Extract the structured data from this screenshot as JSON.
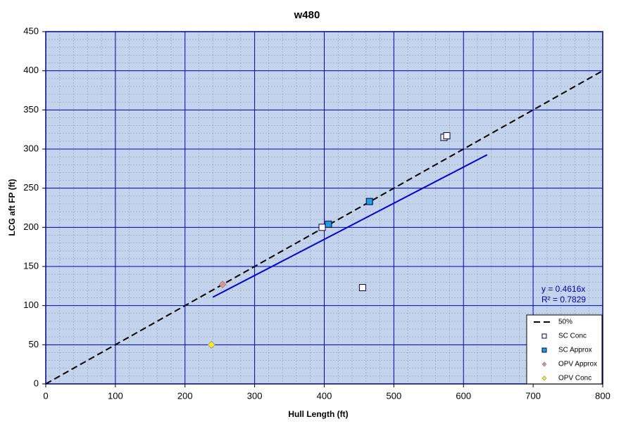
{
  "chart_data": {
    "type": "scatter",
    "title": "w480",
    "x_label": "Hull Length (ft)",
    "y_label": "LCG aft FP (ft)",
    "xlim": [
      0,
      800
    ],
    "xticks": [
      0,
      100,
      200,
      300,
      400,
      500,
      600,
      700,
      800
    ],
    "ylim": [
      0,
      450
    ],
    "yticks": [
      0,
      50,
      100,
      150,
      200,
      250,
      300,
      350,
      400,
      450
    ],
    "grid": true,
    "minor_grid": {
      "xstep": 20,
      "ystep": 10
    },
    "legend": "bottom-right",
    "series": [
      {
        "name": "50%",
        "kind": "line",
        "dash": true,
        "color": "#000000",
        "x": [
          0,
          800
        ],
        "values": [
          0,
          400
        ]
      },
      {
        "name": "SC Conc",
        "kind": "square",
        "color": "#ffffff",
        "x": [
          397,
          572,
          576,
          455
        ],
        "values": [
          200,
          315,
          317,
          123
        ]
      },
      {
        "name": "SC Approx",
        "kind": "square",
        "color": "#1ea0e0",
        "x": [
          406,
          465
        ],
        "values": [
          204,
          233
        ]
      },
      {
        "name": "OPV Approx",
        "kind": "diamond",
        "color": "#e09090",
        "x": [
          254
        ],
        "values": [
          127
        ]
      },
      {
        "name": "OPV Conc",
        "kind": "diamond",
        "color": "#ffee22",
        "x": [
          238
        ],
        "values": [
          50
        ]
      }
    ],
    "trendline": {
      "color": "#0000dd",
      "x": [
        240,
        634
      ],
      "values": [
        110.8,
        292.7
      ],
      "equation": "y = 0.4616x",
      "r_squared": "R² = 0.7829"
    }
  }
}
